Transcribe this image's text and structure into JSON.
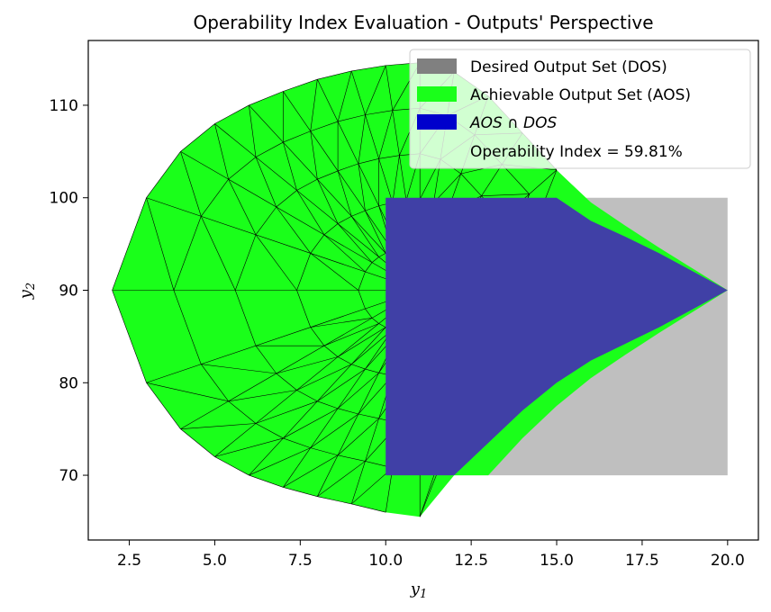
{
  "chart_data": {
    "type": "area",
    "title": "Operability Index Evaluation - Outputs' Perspective",
    "xlabel": "y",
    "xlabel_sub": "1",
    "ylabel": "y",
    "ylabel_sub": "2",
    "xlim": [
      1.3,
      20.9
    ],
    "ylim": [
      63.0,
      117.0
    ],
    "xticks": [
      2.5,
      5.0,
      7.5,
      10.0,
      12.5,
      15.0,
      17.5,
      20.0
    ],
    "xtick_labels": [
      "2.5",
      "5.0",
      "7.5",
      "10.0",
      "12.5",
      "15.0",
      "17.5",
      "20.0"
    ],
    "yticks": [
      70,
      80,
      90,
      100,
      110
    ],
    "ytick_labels": [
      "70",
      "80",
      "90",
      "100",
      "110"
    ],
    "grid": false,
    "legend_position": "top-right",
    "legend": [
      {
        "label": "Desired Output Set (DOS)",
        "color": "#808080"
      },
      {
        "label": "Achievable Output Set (AOS)",
        "color": "#1aff1a"
      },
      {
        "label": "AOS ∩ DOS",
        "color": "#0000cc"
      },
      {
        "label": "Operability Index = 59.81%",
        "color": ""
      }
    ],
    "dos": {
      "x_range": [
        10,
        20
      ],
      "y_range": [
        70,
        100
      ],
      "color": "#bfbfbf"
    },
    "aos": {
      "color": "#1aff1a",
      "boundary": [
        [
          2,
          90
        ],
        [
          3,
          100
        ],
        [
          4,
          105
        ],
        [
          5,
          108
        ],
        [
          6,
          110
        ],
        [
          7,
          111.5
        ],
        [
          8,
          112.8
        ],
        [
          9,
          113.7
        ],
        [
          10,
          114.3
        ],
        [
          11,
          114.6
        ],
        [
          12,
          113.6
        ],
        [
          13,
          111
        ],
        [
          14,
          107
        ],
        [
          15,
          103
        ],
        [
          16,
          99.5
        ],
        [
          17,
          97
        ],
        [
          18,
          94.6
        ],
        [
          19,
          92.3
        ],
        [
          20,
          90
        ],
        [
          19,
          87.7
        ],
        [
          18,
          85.4
        ],
        [
          17,
          83
        ],
        [
          16,
          80.5
        ],
        [
          15,
          77.5
        ],
        [
          14,
          74
        ],
        [
          13,
          70
        ],
        [
          12,
          70
        ],
        [
          11,
          65.5
        ],
        [
          10,
          66
        ],
        [
          9,
          66.9
        ],
        [
          8,
          67.7
        ],
        [
          7,
          68.7
        ],
        [
          6,
          70
        ],
        [
          5,
          72
        ],
        [
          4,
          75
        ],
        [
          3,
          80
        ]
      ]
    },
    "intersection": {
      "color": "#4040a6",
      "boundary": [
        [
          10,
          100
        ],
        [
          15,
          100
        ],
        [
          16,
          97.5
        ],
        [
          17,
          95.8
        ],
        [
          18,
          94
        ],
        [
          19,
          92
        ],
        [
          20,
          90
        ],
        [
          19,
          88
        ],
        [
          18,
          86
        ],
        [
          17,
          84.2
        ],
        [
          16,
          82.4
        ],
        [
          15,
          80
        ],
        [
          14,
          77
        ],
        [
          13,
          73.5
        ],
        [
          12,
          70
        ],
        [
          10,
          70
        ]
      ]
    },
    "mesh": {
      "center": [
        11,
        90
      ],
      "rays": [
        [
          2,
          90
        ],
        [
          3,
          100
        ],
        [
          4,
          105
        ],
        [
          5,
          108
        ],
        [
          6,
          110
        ],
        [
          7,
          111.5
        ],
        [
          8,
          112.8
        ],
        [
          9,
          113.7
        ],
        [
          10,
          114.3
        ],
        [
          11,
          114.6
        ],
        [
          12,
          113.6
        ],
        [
          13,
          111
        ],
        [
          14,
          107
        ],
        [
          15,
          103
        ],
        [
          11,
          65.5
        ],
        [
          10,
          66
        ],
        [
          9,
          66.9
        ],
        [
          8,
          67.7
        ],
        [
          7,
          68.7
        ],
        [
          6,
          70
        ],
        [
          5,
          72
        ],
        [
          4,
          75
        ],
        [
          3,
          80
        ]
      ],
      "rings": 4
    },
    "operability_index": "59.81%"
  }
}
